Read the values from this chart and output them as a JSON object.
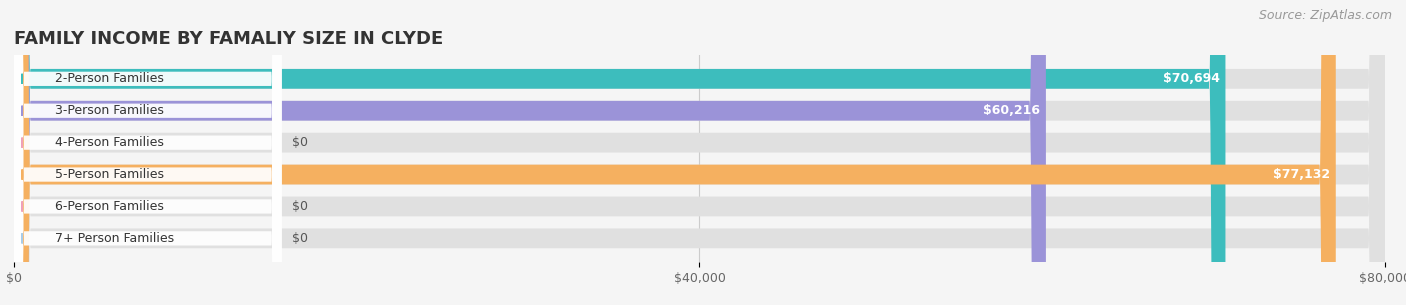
{
  "title": "FAMILY INCOME BY FAMALIY SIZE IN CLYDE",
  "source": "Source: ZipAtlas.com",
  "categories": [
    "2-Person Families",
    "3-Person Families",
    "4-Person Families",
    "5-Person Families",
    "6-Person Families",
    "7+ Person Families"
  ],
  "values": [
    70694,
    60216,
    0,
    77132,
    0,
    0
  ],
  "bar_colors": [
    "#3dbdbd",
    "#9b93d8",
    "#f0a0b8",
    "#f5b060",
    "#f0a0b8",
    "#a8cce8"
  ],
  "label_colors": [
    "#ffffff",
    "#ffffff",
    "#555555",
    "#ffffff",
    "#555555",
    "#555555"
  ],
  "xlim": [
    0,
    80000
  ],
  "xticks": [
    0,
    40000,
    80000
  ],
  "xtick_labels": [
    "$0",
    "$40,000",
    "$80,000"
  ],
  "bar_height": 0.62,
  "background_color": "#f5f5f5",
  "bar_bg_color": "#e0e0e0",
  "title_fontsize": 13,
  "label_fontsize": 9,
  "tick_fontsize": 9,
  "source_fontsize": 9
}
